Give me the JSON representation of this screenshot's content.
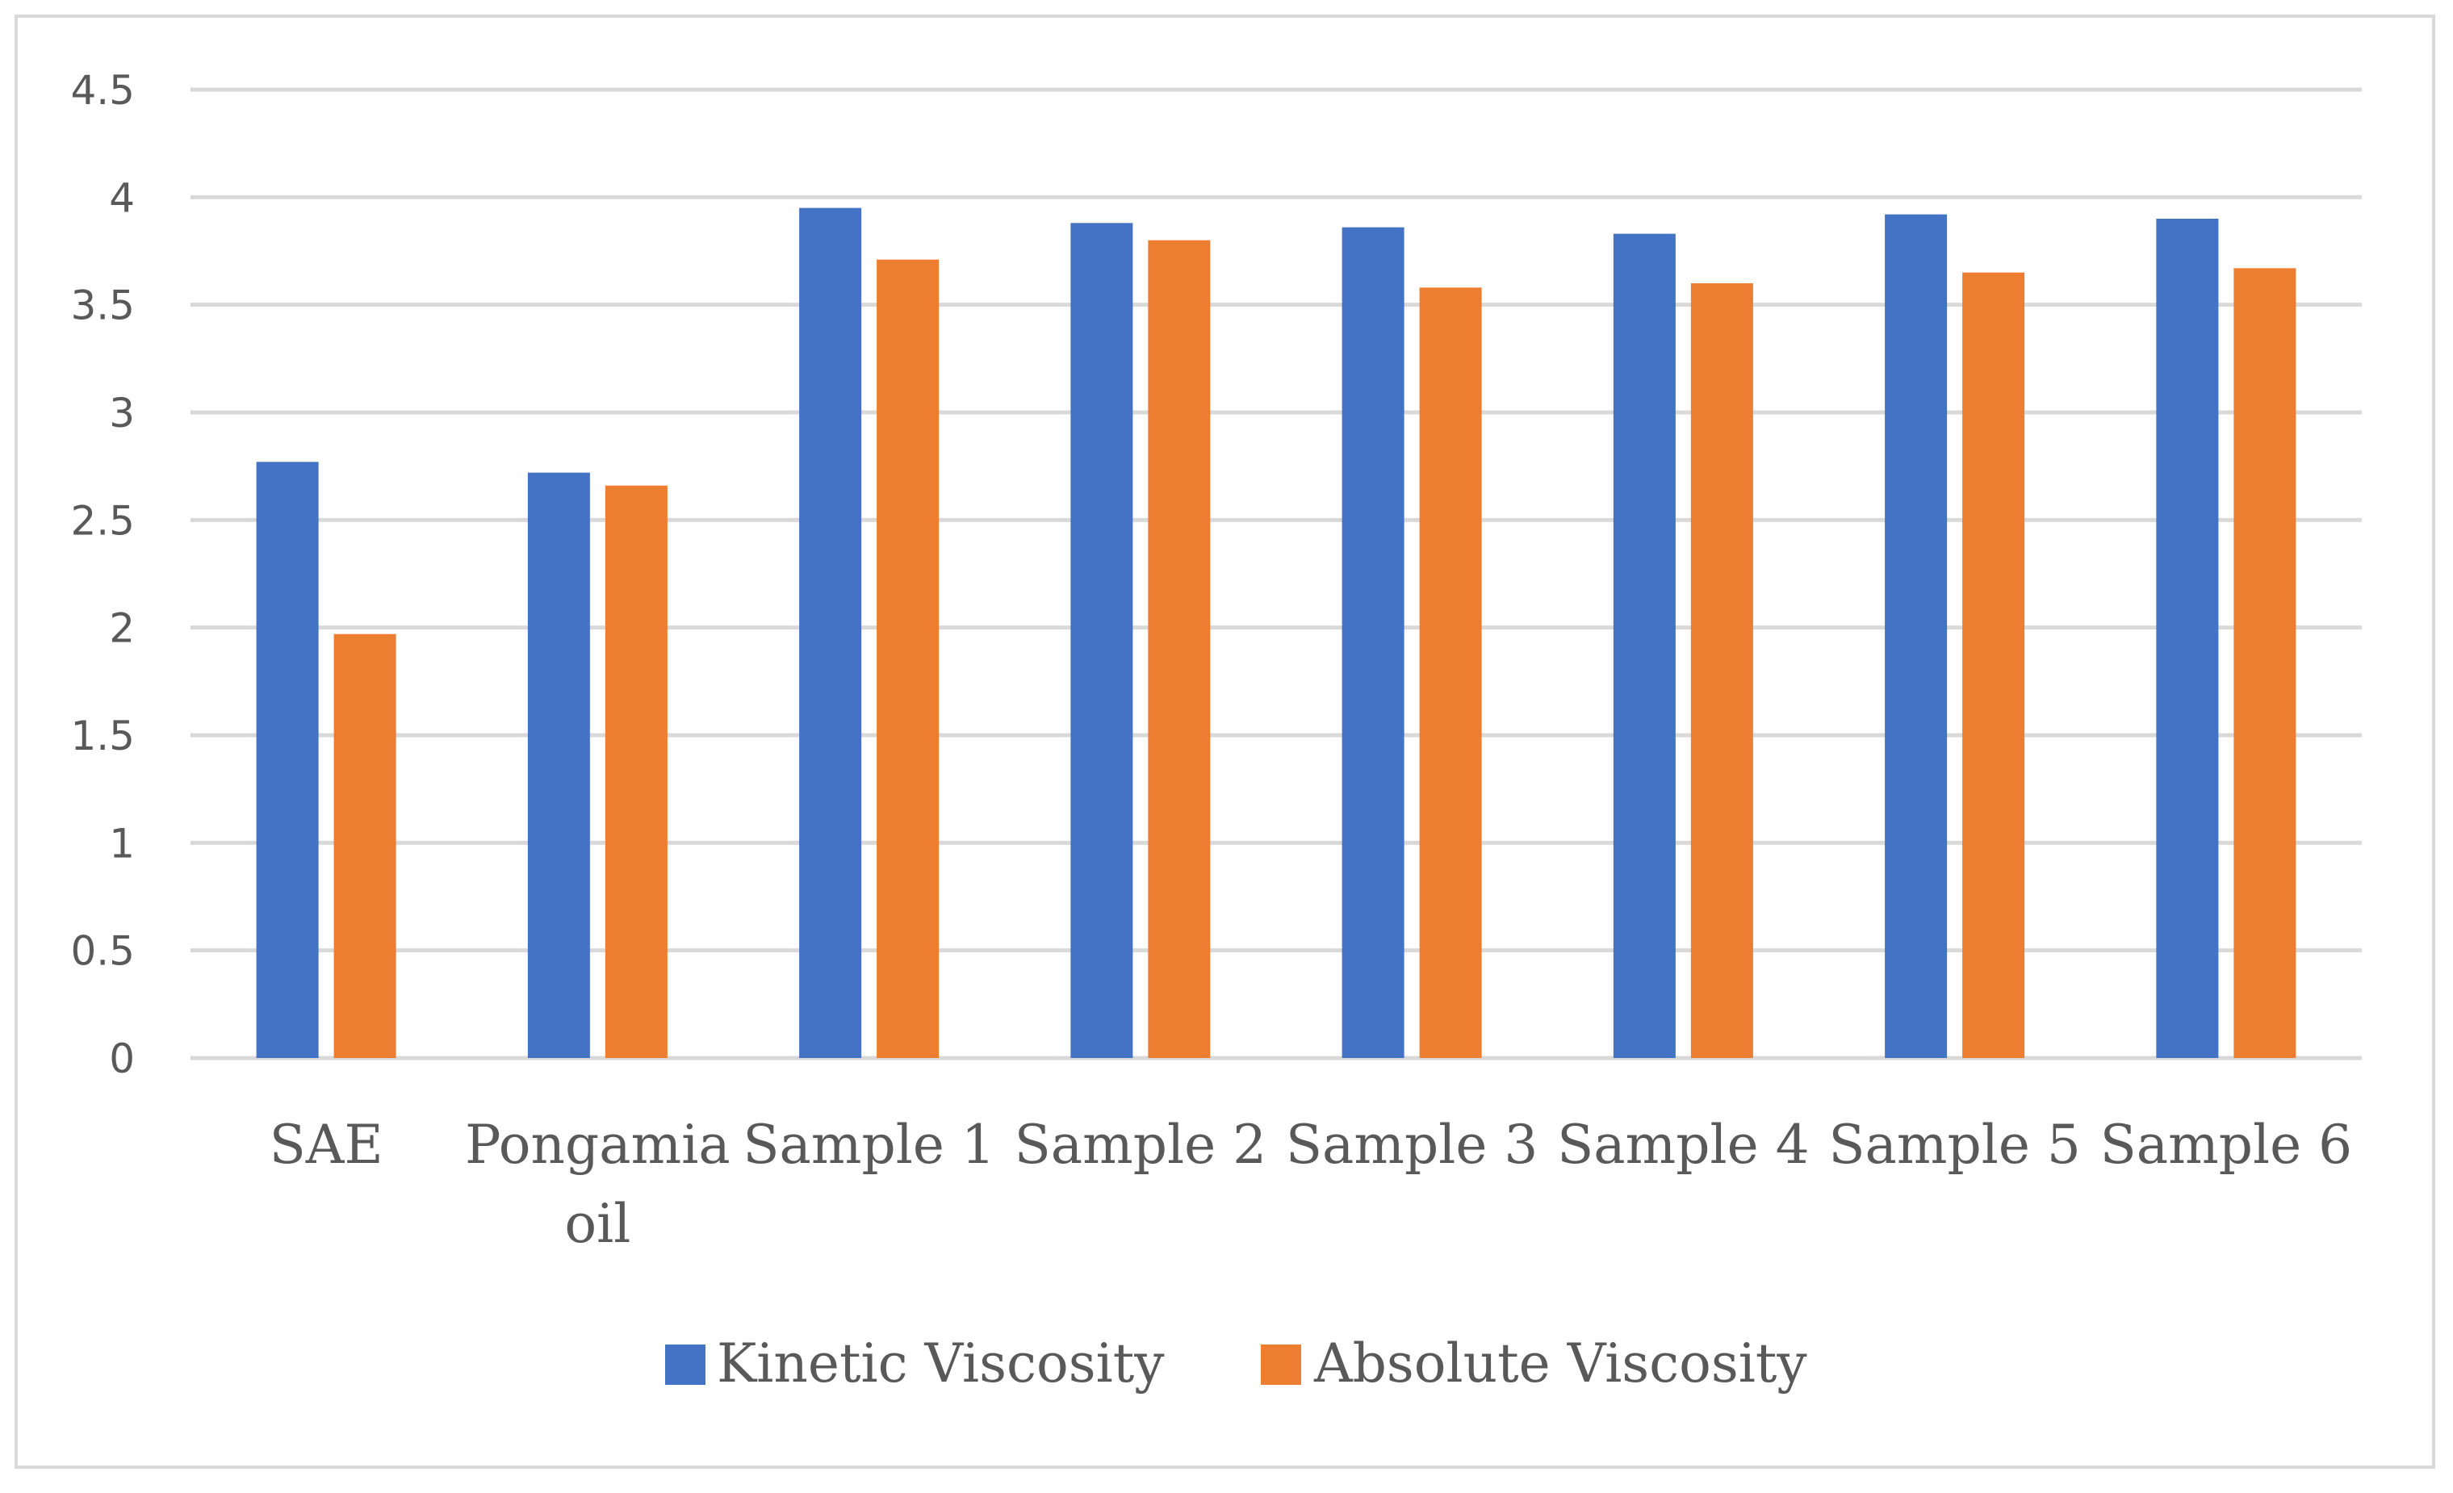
{
  "chart_data": {
    "type": "bar",
    "title": "",
    "xlabel": "",
    "ylabel": "",
    "ylim": [
      0,
      4.5
    ],
    "yticks": [
      "0",
      "0.5",
      "1",
      "1.5",
      "2",
      "2.5",
      "3",
      "3.5",
      "4",
      "4.5"
    ],
    "grid": true,
    "legend_position": "bottom",
    "categories": [
      [
        "SAE"
      ],
      [
        "Pongamia",
        "oil"
      ],
      [
        "Sample 1"
      ],
      [
        "Sample 2"
      ],
      [
        "Sample 3"
      ],
      [
        "Sample 4"
      ],
      [
        "Sample 5"
      ],
      [
        "Sample 6"
      ]
    ],
    "series": [
      {
        "name": "Kinetic Viscosity",
        "color": "#4472c4",
        "values": [
          2.77,
          2.72,
          3.95,
          3.88,
          3.86,
          3.83,
          3.92,
          3.9
        ]
      },
      {
        "name": "Absolute Viscosity",
        "color": "#ed7d31",
        "values": [
          1.97,
          2.66,
          3.71,
          3.8,
          3.58,
          3.6,
          3.65,
          3.67
        ]
      }
    ]
  }
}
